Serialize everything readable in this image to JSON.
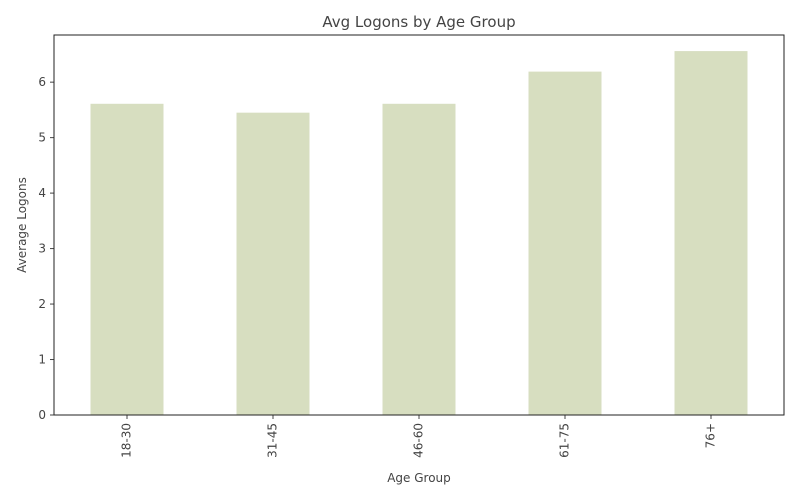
{
  "chart_data": {
    "type": "bar",
    "title": "Avg Logons by Age Group",
    "xlabel": "Age Group",
    "ylabel": "Average Logons",
    "categories": [
      "18-30",
      "31-45",
      "46-60",
      "61-75",
      "76+"
    ],
    "values": [
      5.61,
      5.45,
      5.61,
      6.19,
      6.56
    ],
    "ylim": [
      0,
      6.85
    ],
    "yticks": [
      0,
      1,
      2,
      3,
      4,
      5,
      6
    ],
    "grid": false,
    "bar_color": "#d7dec0",
    "axis_color": "#222222",
    "text_color": "#444444"
  }
}
